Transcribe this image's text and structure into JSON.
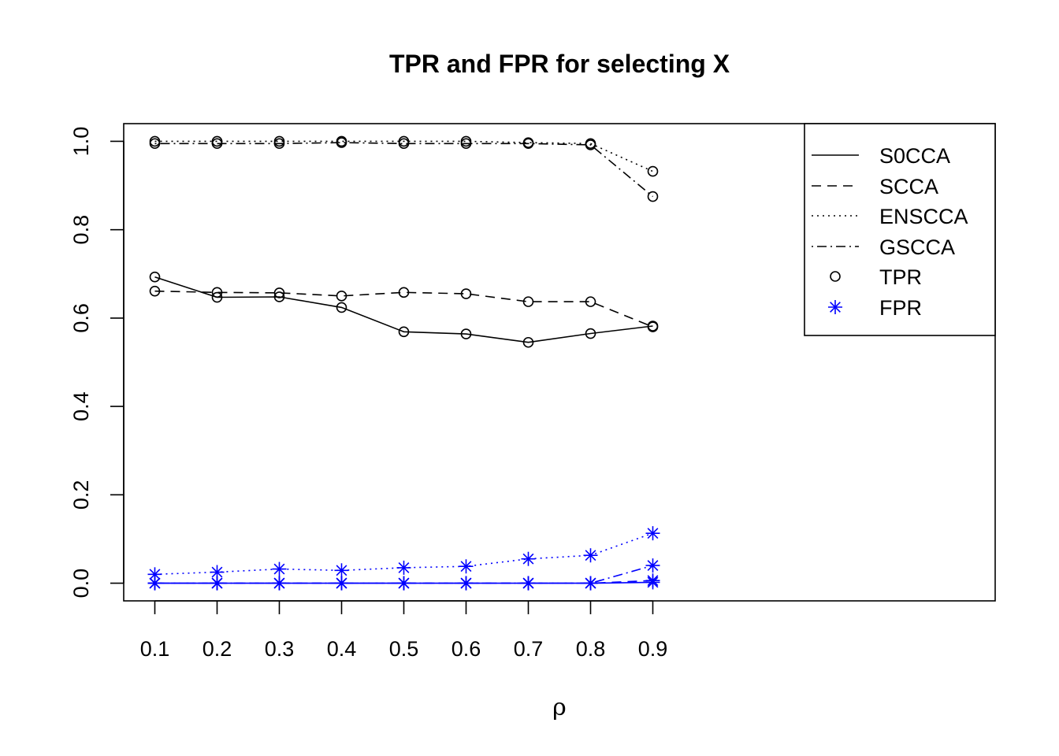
{
  "chart_data": {
    "type": "line",
    "title": "TPR and FPR for selecting X",
    "xlabel": "ρ",
    "ylabel": "",
    "x": [
      0.1,
      0.2,
      0.3,
      0.4,
      0.5,
      0.6,
      0.7,
      0.8,
      0.9
    ],
    "x_tick_labels": [
      "0.1",
      "0.2",
      "0.3",
      "0.4",
      "0.5",
      "0.6",
      "0.7",
      "0.8",
      "0.9"
    ],
    "y_ticks": [
      0.0,
      0.2,
      0.4,
      0.6,
      0.8,
      1.0
    ],
    "y_tick_labels": [
      "0.0",
      "0.2",
      "0.4",
      "0.6",
      "0.8",
      "1.0"
    ],
    "xlim": [
      0.05,
      1.45
    ],
    "ylim": [
      -0.04,
      1.04
    ],
    "grid": false,
    "legend_position": "top-right",
    "legend": {
      "lines": [
        {
          "label": "S0CCA",
          "dash": "solid"
        },
        {
          "label": "SCCA",
          "dash": "dashed"
        },
        {
          "label": "ENSCCA",
          "dash": "dotted"
        },
        {
          "label": "GSCCA",
          "dash": "dotdash"
        }
      ],
      "markers": [
        {
          "label": "TPR",
          "symbol": "circle",
          "color": "#000000"
        },
        {
          "label": "FPR",
          "symbol": "asterisk",
          "color": "#0000ff"
        }
      ]
    },
    "series": [
      {
        "method": "S0CCA",
        "metric": "TPR",
        "dash": "solid",
        "color": "#000000",
        "values": [
          0.693,
          0.647,
          0.648,
          0.624,
          0.569,
          0.564,
          0.545,
          0.565,
          0.582
        ]
      },
      {
        "method": "SCCA",
        "metric": "TPR",
        "dash": "dashed",
        "color": "#000000",
        "values": [
          0.661,
          0.658,
          0.657,
          0.65,
          0.658,
          0.655,
          0.637,
          0.637,
          0.58
        ]
      },
      {
        "method": "ENSCCA",
        "metric": "TPR",
        "dash": "dotted",
        "color": "#000000",
        "values": [
          1.0,
          1.0,
          1.0,
          1.0,
          1.0,
          1.0,
          0.997,
          0.995,
          0.932
        ]
      },
      {
        "method": "GSCCA",
        "metric": "TPR",
        "dash": "dotdash",
        "color": "#000000",
        "values": [
          0.995,
          0.995,
          0.995,
          0.997,
          0.995,
          0.995,
          0.995,
          0.992,
          0.875
        ]
      },
      {
        "method": "S0CCA",
        "metric": "FPR",
        "dash": "solid",
        "color": "#0000ff",
        "values": [
          0.0,
          0.0,
          0.0,
          0.0,
          0.0,
          0.0,
          0.0,
          0.0,
          0.002
        ]
      },
      {
        "method": "SCCA",
        "metric": "FPR",
        "dash": "dashed",
        "color": "#0000ff",
        "values": [
          0.0,
          0.0,
          0.0,
          0.0,
          0.0,
          0.0,
          0.0,
          0.0,
          0.006
        ]
      },
      {
        "method": "ENSCCA",
        "metric": "FPR",
        "dash": "dotted",
        "color": "#0000ff",
        "values": [
          0.02,
          0.025,
          0.032,
          0.029,
          0.035,
          0.038,
          0.055,
          0.063,
          0.113
        ]
      },
      {
        "method": "GSCCA",
        "metric": "FPR",
        "dash": "dotdash",
        "color": "#0000ff",
        "values": [
          0.0,
          0.0,
          0.0,
          0.0,
          0.0,
          0.0,
          0.0,
          0.0,
          0.04
        ]
      }
    ]
  }
}
